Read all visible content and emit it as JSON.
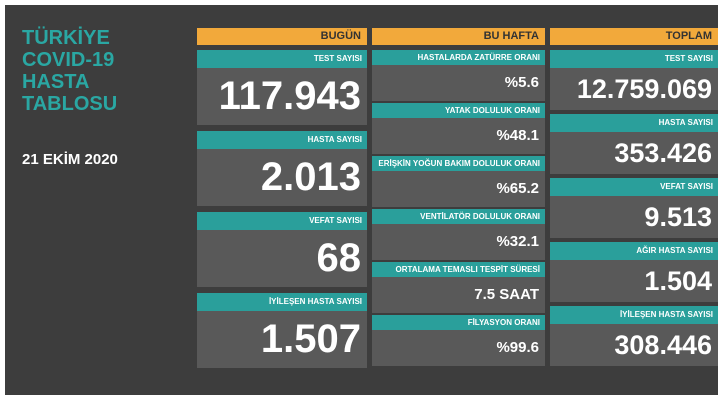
{
  "title_lines": [
    "TÜRKİYE",
    "COVID-19",
    "HASTA",
    "TABLOSU"
  ],
  "date": "21 EKİM 2020",
  "columns": [
    {
      "header": "BUGÜN",
      "items": [
        {
          "label": "TEST SAYISI",
          "value": "117.943"
        },
        {
          "label": "HASTA SAYISI",
          "value": "2.013"
        },
        {
          "label": "VEFAT SAYISI",
          "value": "68"
        },
        {
          "label": "İYİLEŞEN HASTA SAYISI",
          "value": "1.507"
        }
      ]
    },
    {
      "header": "BU HAFTA",
      "items": [
        {
          "label": "HASTALARDA ZATÜRRE ORANI",
          "value": "%5.6"
        },
        {
          "label": "YATAK DOLULUK ORANI",
          "value": "%48.1"
        },
        {
          "label": "ERİŞKİN YOĞUN BAKIM DOLULUK ORANI",
          "value": "%65.2"
        },
        {
          "label": "VENTİLATÖR DOLULUK ORANI",
          "value": "%32.1"
        },
        {
          "label": "ORTALAMA TEMASLI TESPİT SÜRESİ",
          "value": "7.5 SAAT"
        },
        {
          "label": "FİLYASYON ORANI",
          "value": "%99.6"
        }
      ]
    },
    {
      "header": "TOPLAM",
      "items": [
        {
          "label": "TEST SAYISI",
          "value": "12.759.069"
        },
        {
          "label": "HASTA SAYISI",
          "value": "353.426"
        },
        {
          "label": "VEFAT SAYISI",
          "value": "9.513"
        },
        {
          "label": "AĞIR HASTA SAYISI",
          "value": "1.504"
        },
        {
          "label": "İYİLEŞEN HASTA SAYISI",
          "value": "308.446"
        }
      ]
    }
  ]
}
